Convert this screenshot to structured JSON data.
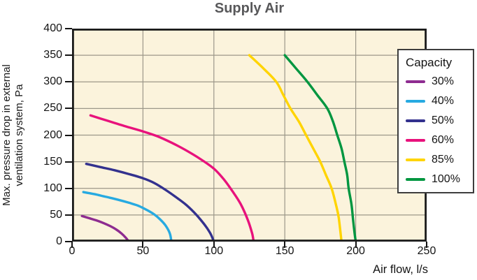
{
  "chart_data": {
    "type": "line",
    "title": "Supply Air",
    "xlabel": "Air flow, l/s",
    "ylabel_lines": [
      "Max. pressure drop in external",
      "ventilation system, Pa"
    ],
    "xlim": [
      0,
      250
    ],
    "ylim": [
      0,
      400
    ],
    "x_ticks": [
      0,
      50,
      100,
      150,
      200,
      250
    ],
    "y_ticks": [
      0,
      50,
      100,
      150,
      200,
      250,
      300,
      350,
      400
    ],
    "grid": true,
    "legend_title": "Capacity",
    "legend_position": "right-overlay",
    "series": [
      {
        "name": "30%",
        "color": "#8e2c90",
        "points": [
          [
            7,
            48
          ],
          [
            12,
            44
          ],
          [
            17,
            40
          ],
          [
            22,
            35
          ],
          [
            27,
            29
          ],
          [
            31,
            23
          ],
          [
            35,
            15
          ],
          [
            38,
            7
          ],
          [
            40,
            0
          ]
        ]
      },
      {
        "name": "40%",
        "color": "#27aae1",
        "points": [
          [
            8,
            93
          ],
          [
            16,
            89
          ],
          [
            24,
            84
          ],
          [
            32,
            79
          ],
          [
            40,
            73
          ],
          [
            47,
            67
          ],
          [
            53,
            59
          ],
          [
            58,
            51
          ],
          [
            62,
            42
          ],
          [
            66,
            30
          ],
          [
            69,
            15
          ],
          [
            70,
            0
          ]
        ]
      },
      {
        "name": "50%",
        "color": "#33318e",
        "points": [
          [
            10,
            146
          ],
          [
            20,
            140
          ],
          [
            30,
            134
          ],
          [
            40,
            127
          ],
          [
            50,
            119
          ],
          [
            58,
            110
          ],
          [
            66,
            97
          ],
          [
            73,
            84
          ],
          [
            80,
            70
          ],
          [
            86,
            55
          ],
          [
            91,
            40
          ],
          [
            95,
            26
          ],
          [
            98,
            13
          ],
          [
            100,
            0
          ]
        ]
      },
      {
        "name": "60%",
        "color": "#e8127c",
        "points": [
          [
            13,
            237
          ],
          [
            25,
            227
          ],
          [
            37,
            217
          ],
          [
            50,
            207
          ],
          [
            60,
            198
          ],
          [
            70,
            186
          ],
          [
            80,
            172
          ],
          [
            90,
            156
          ],
          [
            100,
            137
          ],
          [
            107,
            117
          ],
          [
            113,
            95
          ],
          [
            119,
            70
          ],
          [
            124,
            40
          ],
          [
            127,
            15
          ],
          [
            128,
            0
          ]
        ]
      },
      {
        "name": "85%",
        "color": "#ffd400",
        "points": [
          [
            125,
            350
          ],
          [
            135,
            325
          ],
          [
            144,
            300
          ],
          [
            149,
            275
          ],
          [
            154,
            250
          ],
          [
            160,
            225
          ],
          [
            165,
            200
          ],
          [
            170,
            175
          ],
          [
            175,
            150
          ],
          [
            179,
            125
          ],
          [
            183,
            100
          ],
          [
            186,
            70
          ],
          [
            188,
            45
          ],
          [
            190,
            0
          ]
        ]
      },
      {
        "name": "100%",
        "color": "#009640",
        "points": [
          [
            150,
            350
          ],
          [
            158,
            325
          ],
          [
            166,
            300
          ],
          [
            173,
            275
          ],
          [
            180,
            250
          ],
          [
            184,
            225
          ],
          [
            187,
            200
          ],
          [
            190,
            175
          ],
          [
            192,
            150
          ],
          [
            194,
            125
          ],
          [
            195,
            100
          ],
          [
            197,
            70
          ],
          [
            198,
            45
          ],
          [
            199,
            20
          ],
          [
            200,
            0
          ]
        ]
      }
    ]
  },
  "colors": {
    "plot_bg": "#fbf3dc",
    "grid": "#9c9789",
    "border": "#1a1a1a",
    "title": "#58585a",
    "text": "#141414",
    "legend_border": "#3d3d3d",
    "legend_bg": "#ffffff"
  }
}
